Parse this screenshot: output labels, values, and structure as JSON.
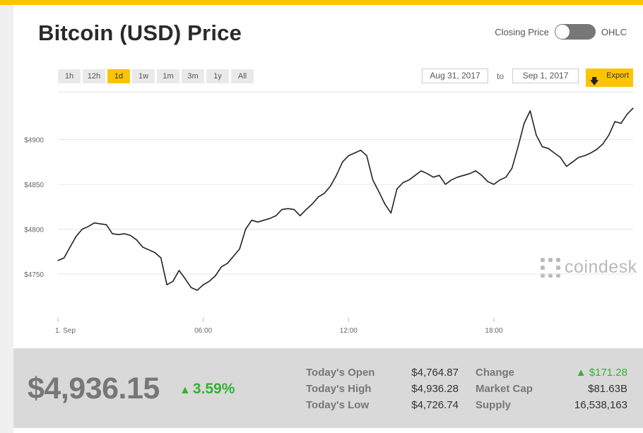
{
  "header": {
    "title": "Bitcoin (USD) Price",
    "toggle_left": "Closing Price",
    "toggle_right": "OHLC"
  },
  "ranges": [
    "1h",
    "12h",
    "1d",
    "1w",
    "1m",
    "3m",
    "1y",
    "All"
  ],
  "active_range": "1d",
  "dates": {
    "from": "Aug 31, 2017",
    "to_label": "to",
    "to": "Sep 1, 2017"
  },
  "export_label": "Export",
  "watermark": "coindesk",
  "colors": {
    "accent": "#fcc404",
    "up": "#34b233",
    "line": "#222222"
  },
  "chart_data": {
    "type": "line",
    "x_ticks": [
      "1. Sep",
      "06:00",
      "12:00",
      "18:00"
    ],
    "y_ticks": [
      4750,
      4800,
      4850,
      4900
    ],
    "y_tick_labels": [
      "$4750",
      "$4800",
      "$4850",
      "$4900"
    ],
    "ylim": [
      4710,
      4950
    ],
    "x_unit": "hours since 00:00 Sep 1",
    "xlim": [
      0,
      23.75
    ],
    "grid": true,
    "series": [
      {
        "x": [
          0,
          0.25,
          0.5,
          0.75,
          1,
          1.25,
          1.5,
          1.75,
          2,
          2.25,
          2.5,
          2.75,
          3,
          3.25,
          3.5,
          3.75,
          4,
          4.25,
          4.5,
          4.75,
          5,
          5.25,
          5.5,
          5.75,
          6,
          6.25,
          6.5,
          6.75,
          7,
          7.25,
          7.5,
          7.75,
          8,
          8.25,
          8.5,
          8.75,
          9,
          9.25,
          9.5,
          9.75,
          10,
          10.25,
          10.5,
          10.75,
          11,
          11.25,
          11.5,
          11.75,
          12,
          12.25,
          12.5,
          12.75,
          13,
          13.25,
          13.5,
          13.75,
          14,
          14.25,
          14.5,
          14.75,
          15,
          15.25,
          15.5,
          15.75,
          16,
          16.25,
          16.5,
          16.75,
          17,
          17.25,
          17.5,
          17.75,
          18,
          18.25,
          18.5,
          18.75,
          19,
          19.25,
          19.5,
          19.75,
          20,
          20.25,
          20.5,
          20.75,
          21,
          21.25,
          21.5,
          21.75,
          22,
          22.25,
          22.5,
          22.75,
          23,
          23.25,
          23.5,
          23.75
        ],
        "y": [
          4765,
          4768,
          4780,
          4792,
          4800,
          4803,
          4807,
          4806,
          4805,
          4795,
          4794,
          4795,
          4793,
          4788,
          4780,
          4777,
          4774,
          4768,
          4738,
          4742,
          4754,
          4745,
          4735,
          4732,
          4738,
          4742,
          4748,
          4758,
          4762,
          4770,
          4778,
          4800,
          4810,
          4808,
          4810,
          4812,
          4815,
          4822,
          4823,
          4822,
          4815,
          4822,
          4828,
          4836,
          4840,
          4848,
          4860,
          4875,
          4882,
          4885,
          4888,
          4882,
          4855,
          4842,
          4828,
          4818,
          4845,
          4852,
          4855,
          4860,
          4865,
          4862,
          4858,
          4860,
          4850,
          4855,
          4858,
          4860,
          4862,
          4865,
          4860,
          4853,
          4850,
          4855,
          4858,
          4868,
          4892,
          4918,
          4932,
          4905,
          4892,
          4890,
          4885,
          4880,
          4870,
          4875,
          4880,
          4882,
          4885,
          4889,
          4895,
          4905,
          4920,
          4918,
          4928,
          4935
        ]
      }
    ]
  },
  "stats": {
    "price": "$4,936.15",
    "change_pct": "3.59%",
    "rows": [
      {
        "label": "Today's Open",
        "value": "$4,764.87",
        "label2": "Change",
        "value2": "▲ $171.28"
      },
      {
        "label": "Today's High",
        "value": "$4,936.28",
        "label2": "Market Cap",
        "value2": "$81.63B"
      },
      {
        "label": "Today's Low",
        "value": "$4,726.74",
        "label2": "Supply",
        "value2": "16,538,163"
      }
    ]
  }
}
